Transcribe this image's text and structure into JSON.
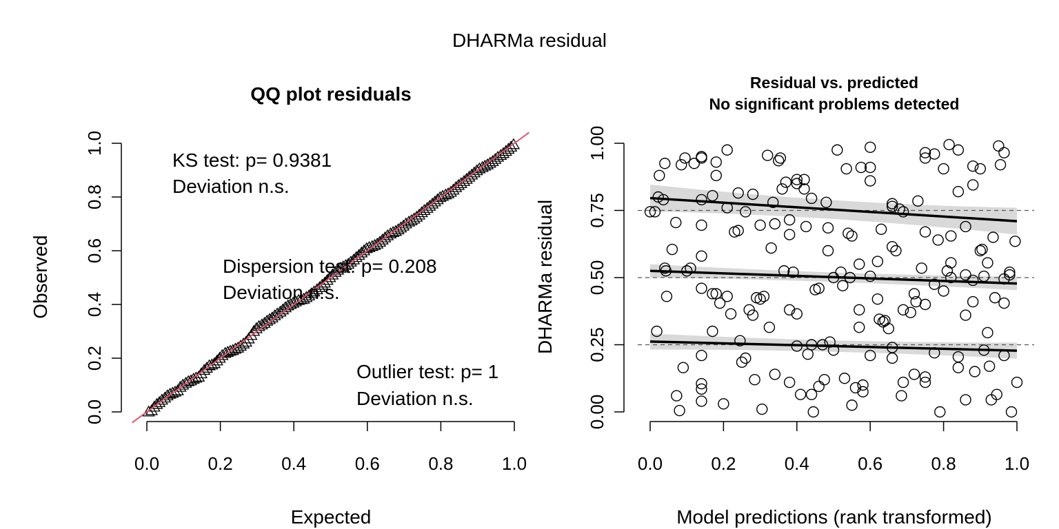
{
  "figure_title": "DHARMa residual",
  "chart_data": [
    {
      "type": "scatter",
      "subtype": "qq",
      "title": "QQ plot residuals",
      "xlabel": "Expected",
      "ylabel": "Observed",
      "xlim": [
        0,
        1
      ],
      "ylim": [
        0,
        1
      ],
      "x_ticks": [
        "0.0",
        "0.2",
        "0.4",
        "0.6",
        "0.8",
        "1.0"
      ],
      "y_ticks": [
        "0.0",
        "0.2",
        "0.4",
        "0.6",
        "0.8",
        "1.0"
      ],
      "marker": "triangle-open",
      "reference_line": {
        "slope": 1,
        "intercept": 0,
        "color": "#DF536B"
      },
      "annotations": [
        {
          "line1": "KS test: p= 0.9381",
          "line2": "Deviation  n.s."
        },
        {
          "line1": "Dispersion test: p= 0.208",
          "line2": "Deviation  n.s."
        },
        {
          "line1": "Outlier test: p= 1",
          "line2": "Deviation  n.s."
        }
      ],
      "points": [
        [
          0.005,
          0.0
        ],
        [
          0.013,
          0.005
        ],
        [
          0.02,
          0.018
        ],
        [
          0.027,
          0.028
        ],
        [
          0.034,
          0.035
        ],
        [
          0.041,
          0.044
        ],
        [
          0.049,
          0.052
        ],
        [
          0.056,
          0.06
        ],
        [
          0.063,
          0.066
        ],
        [
          0.07,
          0.07
        ],
        [
          0.077,
          0.074
        ],
        [
          0.084,
          0.079
        ],
        [
          0.091,
          0.092
        ],
        [
          0.098,
          0.1
        ],
        [
          0.106,
          0.107
        ],
        [
          0.113,
          0.113
        ],
        [
          0.12,
          0.116
        ],
        [
          0.127,
          0.122
        ],
        [
          0.134,
          0.126
        ],
        [
          0.141,
          0.13
        ],
        [
          0.148,
          0.142
        ],
        [
          0.156,
          0.155
        ],
        [
          0.163,
          0.163
        ],
        [
          0.17,
          0.172
        ],
        [
          0.177,
          0.175
        ],
        [
          0.184,
          0.18
        ],
        [
          0.191,
          0.19
        ],
        [
          0.198,
          0.2
        ],
        [
          0.205,
          0.21
        ],
        [
          0.213,
          0.218
        ],
        [
          0.22,
          0.222
        ],
        [
          0.227,
          0.226
        ],
        [
          0.234,
          0.229
        ],
        [
          0.241,
          0.234
        ],
        [
          0.248,
          0.238
        ],
        [
          0.255,
          0.245
        ],
        [
          0.263,
          0.253
        ],
        [
          0.27,
          0.26
        ],
        [
          0.277,
          0.272
        ],
        [
          0.284,
          0.285
        ],
        [
          0.291,
          0.3
        ],
        [
          0.298,
          0.31
        ],
        [
          0.305,
          0.318
        ],
        [
          0.313,
          0.324
        ],
        [
          0.32,
          0.33
        ],
        [
          0.327,
          0.338
        ],
        [
          0.334,
          0.344
        ],
        [
          0.341,
          0.35
        ],
        [
          0.348,
          0.358
        ],
        [
          0.355,
          0.365
        ],
        [
          0.363,
          0.372
        ],
        [
          0.37,
          0.38
        ],
        [
          0.377,
          0.388
        ],
        [
          0.384,
          0.395
        ],
        [
          0.391,
          0.4
        ],
        [
          0.398,
          0.405
        ],
        [
          0.405,
          0.41
        ],
        [
          0.413,
          0.415
        ],
        [
          0.42,
          0.418
        ],
        [
          0.427,
          0.42
        ],
        [
          0.434,
          0.426
        ],
        [
          0.441,
          0.432
        ],
        [
          0.448,
          0.44
        ],
        [
          0.455,
          0.447
        ],
        [
          0.463,
          0.455
        ],
        [
          0.47,
          0.463
        ],
        [
          0.477,
          0.472
        ],
        [
          0.484,
          0.48
        ],
        [
          0.491,
          0.49
        ],
        [
          0.498,
          0.5
        ],
        [
          0.505,
          0.51
        ],
        [
          0.513,
          0.52
        ],
        [
          0.52,
          0.528
        ],
        [
          0.527,
          0.535
        ],
        [
          0.534,
          0.54
        ],
        [
          0.541,
          0.545
        ],
        [
          0.548,
          0.55
        ],
        [
          0.555,
          0.558
        ],
        [
          0.563,
          0.566
        ],
        [
          0.57,
          0.575
        ],
        [
          0.577,
          0.583
        ],
        [
          0.584,
          0.592
        ],
        [
          0.591,
          0.6
        ],
        [
          0.598,
          0.608
        ],
        [
          0.605,
          0.612
        ],
        [
          0.613,
          0.616
        ],
        [
          0.62,
          0.62
        ],
        [
          0.627,
          0.625
        ],
        [
          0.634,
          0.632
        ],
        [
          0.641,
          0.64
        ],
        [
          0.648,
          0.648
        ],
        [
          0.655,
          0.656
        ],
        [
          0.663,
          0.663
        ],
        [
          0.67,
          0.668
        ],
        [
          0.677,
          0.672
        ],
        [
          0.684,
          0.678
        ],
        [
          0.691,
          0.685
        ],
        [
          0.698,
          0.692
        ],
        [
          0.705,
          0.7
        ],
        [
          0.713,
          0.707
        ],
        [
          0.72,
          0.712
        ],
        [
          0.727,
          0.718
        ],
        [
          0.734,
          0.725
        ],
        [
          0.741,
          0.733
        ],
        [
          0.748,
          0.742
        ],
        [
          0.755,
          0.75
        ],
        [
          0.763,
          0.758
        ],
        [
          0.77,
          0.766
        ],
        [
          0.777,
          0.774
        ],
        [
          0.784,
          0.782
        ],
        [
          0.791,
          0.79
        ],
        [
          0.798,
          0.798
        ],
        [
          0.805,
          0.803
        ],
        [
          0.813,
          0.808
        ],
        [
          0.82,
          0.812
        ],
        [
          0.827,
          0.818
        ],
        [
          0.834,
          0.826
        ],
        [
          0.841,
          0.835
        ],
        [
          0.848,
          0.843
        ],
        [
          0.855,
          0.85
        ],
        [
          0.863,
          0.858
        ],
        [
          0.87,
          0.866
        ],
        [
          0.877,
          0.874
        ],
        [
          0.884,
          0.882
        ],
        [
          0.891,
          0.89
        ],
        [
          0.898,
          0.898
        ],
        [
          0.905,
          0.905
        ],
        [
          0.913,
          0.91
        ],
        [
          0.92,
          0.915
        ],
        [
          0.927,
          0.92
        ],
        [
          0.934,
          0.926
        ],
        [
          0.941,
          0.932
        ],
        [
          0.948,
          0.94
        ],
        [
          0.955,
          0.948
        ],
        [
          0.963,
          0.955
        ],
        [
          0.97,
          0.962
        ],
        [
          0.977,
          0.97
        ],
        [
          0.984,
          0.978
        ],
        [
          0.991,
          0.986
        ],
        [
          0.998,
          0.995
        ]
      ]
    },
    {
      "type": "scatter",
      "title": "Residual vs. predicted",
      "subtitle": "No significant problems detected",
      "xlabel": "Model predictions (rank transformed)",
      "ylabel": "DHARMa residual",
      "xlim": [
        0,
        1
      ],
      "ylim": [
        0,
        1
      ],
      "x_ticks": [
        "0.0",
        "0.2",
        "0.4",
        "0.6",
        "0.8",
        "1.0"
      ],
      "y_ticks": [
        "0.00",
        "0.25",
        "0.50",
        "0.75",
        "1.00"
      ],
      "marker": "circle-open",
      "hlines": [
        0.25,
        0.5,
        0.75
      ],
      "quantile_lines": [
        {
          "quantile": 0.25,
          "y0": 0.262,
          "y1": 0.228,
          "band": 0.03
        },
        {
          "quantile": 0.5,
          "y0": 0.525,
          "y1": 0.478,
          "band": 0.025
        },
        {
          "quantile": 0.75,
          "y0": 0.796,
          "y1": 0.71,
          "band": 0.05
        }
      ],
      "points": [
        [
          0.0,
          0.745
        ],
        [
          0.013,
          0.745
        ],
        [
          0.018,
          0.3
        ],
        [
          0.022,
          0.8
        ],
        [
          0.025,
          0.88
        ],
        [
          0.036,
          0.79
        ],
        [
          0.04,
          0.925
        ],
        [
          0.04,
          0.535
        ],
        [
          0.043,
          0.525
        ],
        [
          0.045,
          0.43
        ],
        [
          0.06,
          0.605
        ],
        [
          0.07,
          0.705
        ],
        [
          0.072,
          0.06
        ],
        [
          0.08,
          0.005
        ],
        [
          0.085,
          0.92
        ],
        [
          0.09,
          0.165
        ],
        [
          0.095,
          0.945
        ],
        [
          0.1,
          0.525
        ],
        [
          0.11,
          0.535
        ],
        [
          0.12,
          0.925
        ],
        [
          0.14,
          0.945
        ],
        [
          0.14,
          0.95
        ],
        [
          0.14,
          0.79
        ],
        [
          0.14,
          0.695
        ],
        [
          0.14,
          0.58
        ],
        [
          0.14,
          0.46
        ],
        [
          0.14,
          0.21
        ],
        [
          0.14,
          0.105
        ],
        [
          0.14,
          0.085
        ],
        [
          0.14,
          0.04
        ],
        [
          0.17,
          0.805
        ],
        [
          0.17,
          0.44
        ],
        [
          0.17,
          0.3
        ],
        [
          0.18,
          0.93
        ],
        [
          0.18,
          0.88
        ],
        [
          0.18,
          0.44
        ],
        [
          0.19,
          0.405
        ],
        [
          0.2,
          0.03
        ],
        [
          0.21,
          0.975
        ],
        [
          0.21,
          0.76
        ],
        [
          0.21,
          0.43
        ],
        [
          0.22,
          0.365
        ],
        [
          0.23,
          0.67
        ],
        [
          0.24,
          0.815
        ],
        [
          0.24,
          0.675
        ],
        [
          0.245,
          0.265
        ],
        [
          0.25,
          0.185
        ],
        [
          0.26,
          0.2
        ],
        [
          0.26,
          0.745
        ],
        [
          0.27,
          0.38
        ],
        [
          0.28,
          0.81
        ],
        [
          0.28,
          0.36
        ],
        [
          0.285,
          0.12
        ],
        [
          0.29,
          0.425
        ],
        [
          0.3,
          0.42
        ],
        [
          0.3,
          0.695
        ],
        [
          0.305,
          0.01
        ],
        [
          0.31,
          0.43
        ],
        [
          0.32,
          0.955
        ],
        [
          0.325,
          0.315
        ],
        [
          0.33,
          0.61
        ],
        [
          0.335,
          0.78
        ],
        [
          0.34,
          0.14
        ],
        [
          0.34,
          0.7
        ],
        [
          0.35,
          0.935
        ],
        [
          0.355,
          0.945
        ],
        [
          0.36,
          0.83
        ],
        [
          0.365,
          0.525
        ],
        [
          0.37,
          0.855
        ],
        [
          0.38,
          0.715
        ],
        [
          0.38,
          0.66
        ],
        [
          0.38,
          0.38
        ],
        [
          0.38,
          0.11
        ],
        [
          0.39,
          0.52
        ],
        [
          0.4,
          0.865
        ],
        [
          0.4,
          0.85
        ],
        [
          0.4,
          0.365
        ],
        [
          0.4,
          0.245
        ],
        [
          0.41,
          0.065
        ],
        [
          0.42,
          0.83
        ],
        [
          0.42,
          0.865
        ],
        [
          0.425,
          0.69
        ],
        [
          0.43,
          0.215
        ],
        [
          0.44,
          0.795
        ],
        [
          0.44,
          0.25
        ],
        [
          0.44,
          0.065
        ],
        [
          0.445,
          0.0
        ],
        [
          0.45,
          0.455
        ],
        [
          0.46,
          0.46
        ],
        [
          0.46,
          0.095
        ],
        [
          0.47,
          0.25
        ],
        [
          0.475,
          0.12
        ],
        [
          0.48,
          0.78
        ],
        [
          0.485,
          0.6
        ],
        [
          0.485,
          0.685
        ],
        [
          0.49,
          0.26
        ],
        [
          0.5,
          0.5
        ],
        [
          0.5,
          0.23
        ],
        [
          0.51,
          0.975
        ],
        [
          0.52,
          0.52
        ],
        [
          0.525,
          0.47
        ],
        [
          0.53,
          0.125
        ],
        [
          0.535,
          0.905
        ],
        [
          0.54,
          0.665
        ],
        [
          0.545,
          0.5
        ],
        [
          0.55,
          0.655
        ],
        [
          0.55,
          0.025
        ],
        [
          0.56,
          0.09
        ],
        [
          0.57,
          0.55
        ],
        [
          0.57,
          0.38
        ],
        [
          0.57,
          0.315
        ],
        [
          0.575,
          0.91
        ],
        [
          0.58,
          0.1
        ],
        [
          0.58,
          0.075
        ],
        [
          0.6,
          0.985
        ],
        [
          0.6,
          0.91
        ],
        [
          0.6,
          0.86
        ],
        [
          0.6,
          0.505
        ],
        [
          0.6,
          0.21
        ],
        [
          0.62,
          0.56
        ],
        [
          0.62,
          0.42
        ],
        [
          0.625,
          0.345
        ],
        [
          0.63,
          0.68
        ],
        [
          0.635,
          0.335
        ],
        [
          0.64,
          0.34
        ],
        [
          0.65,
          0.31
        ],
        [
          0.66,
          0.775
        ],
        [
          0.66,
          0.765
        ],
        [
          0.66,
          0.615
        ],
        [
          0.66,
          0.24
        ],
        [
          0.66,
          0.2
        ],
        [
          0.67,
          0.6
        ],
        [
          0.68,
          0.755
        ],
        [
          0.685,
          0.06
        ],
        [
          0.69,
          0.745
        ],
        [
          0.69,
          0.38
        ],
        [
          0.69,
          0.11
        ],
        [
          0.71,
          0.37
        ],
        [
          0.72,
          0.44
        ],
        [
          0.72,
          0.14
        ],
        [
          0.725,
          0.41
        ],
        [
          0.73,
          0.785
        ],
        [
          0.74,
          0.535
        ],
        [
          0.75,
          0.965
        ],
        [
          0.75,
          0.945
        ],
        [
          0.75,
          0.67
        ],
        [
          0.75,
          0.4
        ],
        [
          0.75,
          0.13
        ],
        [
          0.75,
          0.11
        ],
        [
          0.775,
          0.96
        ],
        [
          0.775,
          0.475
        ],
        [
          0.775,
          0.22
        ],
        [
          0.785,
          0.64
        ],
        [
          0.79,
          0.0
        ],
        [
          0.8,
          0.905
        ],
        [
          0.8,
          0.45
        ],
        [
          0.81,
          0.525
        ],
        [
          0.815,
          0.995
        ],
        [
          0.82,
          0.655
        ],
        [
          0.82,
          0.555
        ],
        [
          0.82,
          0.5
        ],
        [
          0.84,
          0.975
        ],
        [
          0.84,
          0.82
        ],
        [
          0.84,
          0.205
        ],
        [
          0.84,
          0.165
        ],
        [
          0.86,
          0.69
        ],
        [
          0.86,
          0.51
        ],
        [
          0.86,
          0.36
        ],
        [
          0.86,
          0.045
        ],
        [
          0.88,
          0.915
        ],
        [
          0.88,
          0.845
        ],
        [
          0.88,
          0.49
        ],
        [
          0.88,
          0.41
        ],
        [
          0.885,
          0.15
        ],
        [
          0.9,
          0.905
        ],
        [
          0.9,
          0.6
        ],
        [
          0.905,
          0.605
        ],
        [
          0.91,
          0.505
        ],
        [
          0.91,
          0.23
        ],
        [
          0.92,
          0.555
        ],
        [
          0.92,
          0.295
        ],
        [
          0.925,
          0.17
        ],
        [
          0.93,
          0.045
        ],
        [
          0.935,
          0.65
        ],
        [
          0.94,
          0.425
        ],
        [
          0.945,
          0.065
        ],
        [
          0.95,
          0.99
        ],
        [
          0.955,
          0.92
        ],
        [
          0.965,
          0.965
        ],
        [
          0.965,
          0.495
        ],
        [
          0.965,
          0.405
        ],
        [
          0.965,
          0.21
        ],
        [
          0.98,
          0.52
        ],
        [
          0.98,
          0.51
        ],
        [
          0.985,
          0.0
        ],
        [
          0.995,
          0.635
        ],
        [
          1.0,
          0.11
        ]
      ]
    }
  ]
}
